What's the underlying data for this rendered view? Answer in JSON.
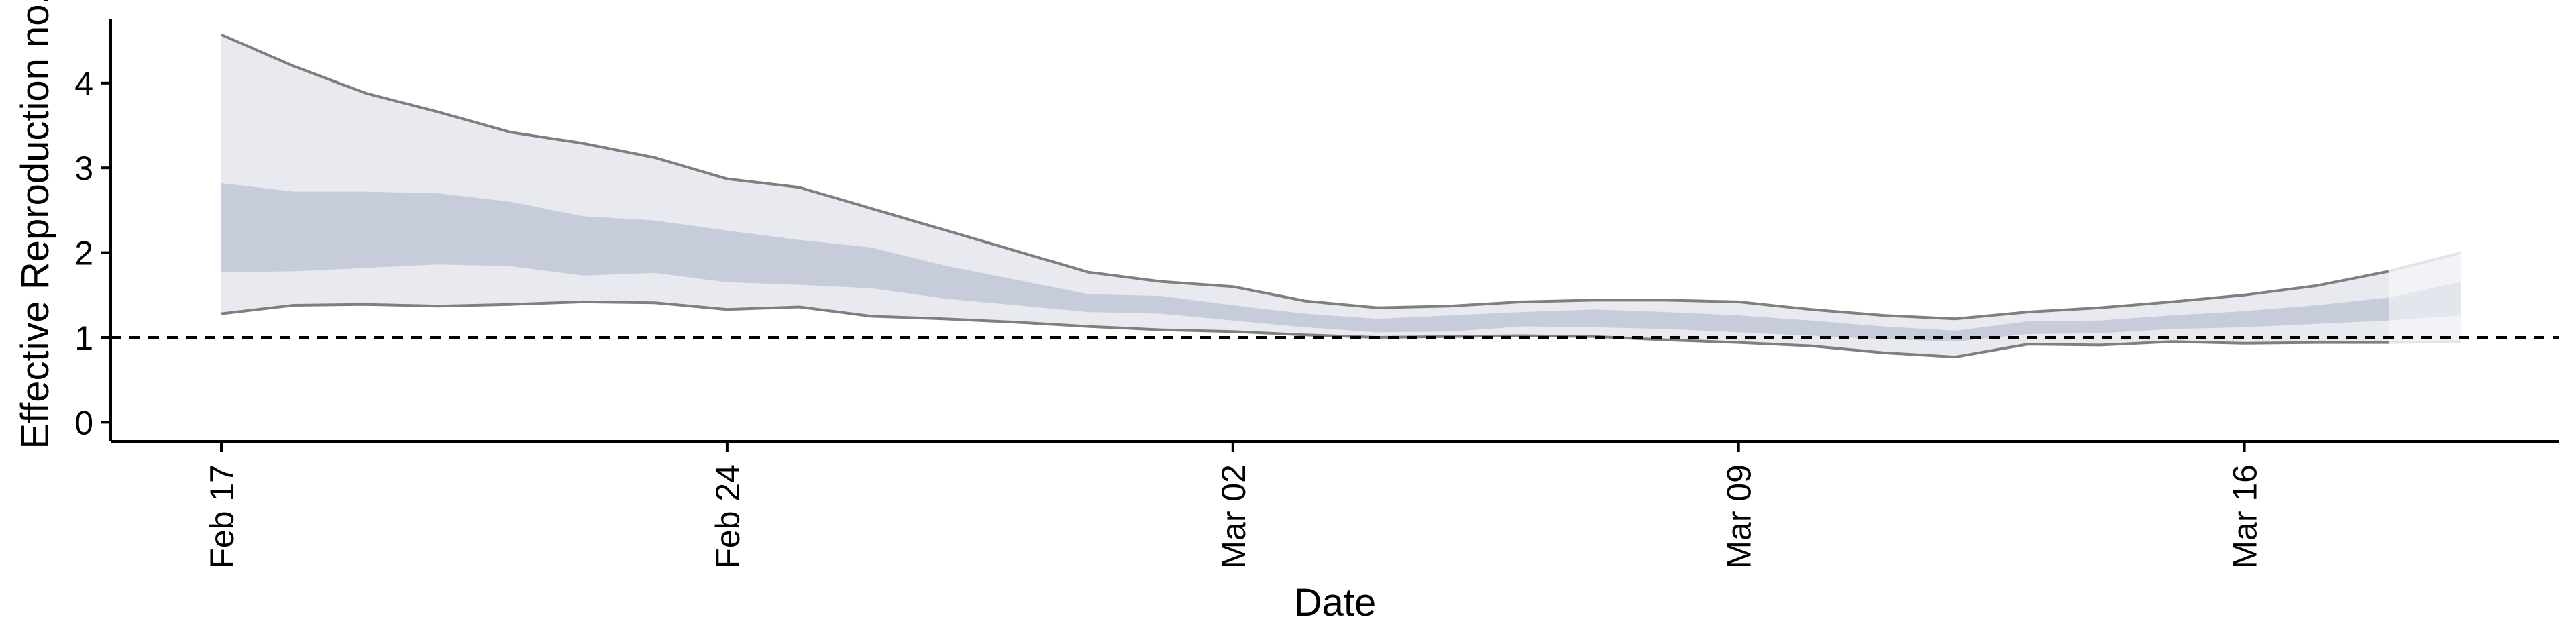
{
  "chart_data": {
    "type": "area",
    "xlabel": "Date",
    "ylabel": "Effective Reproduction no.",
    "x_dates": [
      "02-17",
      "02-18",
      "02-19",
      "02-20",
      "02-21",
      "02-22",
      "02-23",
      "02-24",
      "02-25",
      "02-26",
      "02-27",
      "02-28",
      "02-29",
      "03-01",
      "03-02",
      "03-03",
      "03-04",
      "03-05",
      "03-06",
      "03-07",
      "03-08",
      "03-09",
      "03-10",
      "03-11",
      "03-12",
      "03-13",
      "03-14",
      "03-15",
      "03-16",
      "03-17",
      "03-18",
      "03-19"
    ],
    "x_ticks": [
      {
        "label": "Feb 17",
        "index": 0
      },
      {
        "label": "Feb 24",
        "index": 7
      },
      {
        "label": "Mar 02",
        "index": 14
      },
      {
        "label": "Mar 09",
        "index": 21
      },
      {
        "label": "Mar 16",
        "index": 28
      }
    ],
    "y_ticks": [
      0,
      1,
      2,
      3,
      4
    ],
    "ylim": [
      -0.2,
      4.85
    ],
    "reference_line": {
      "y": 1,
      "style": "dashed"
    },
    "estimate_type_change_index": 30,
    "series": [
      {
        "band": "90% interval",
        "lower": [
          1.28,
          1.38,
          1.39,
          1.37,
          1.39,
          1.42,
          1.41,
          1.33,
          1.36,
          1.25,
          1.22,
          1.18,
          1.13,
          1.09,
          1.07,
          1.03,
          1.0,
          1.01,
          1.02,
          1.01,
          0.97,
          0.94,
          0.9,
          0.82,
          0.77,
          0.92,
          0.91,
          0.95,
          0.93,
          0.94,
          0.94,
          0.95
        ],
        "upper": [
          4.57,
          4.2,
          3.88,
          3.66,
          3.42,
          3.29,
          3.12,
          2.87,
          2.77,
          2.52,
          2.27,
          2.02,
          1.77,
          1.66,
          1.6,
          1.43,
          1.35,
          1.37,
          1.42,
          1.44,
          1.44,
          1.42,
          1.33,
          1.26,
          1.22,
          1.3,
          1.35,
          1.42,
          1.5,
          1.61,
          1.78,
          2.0
        ]
      },
      {
        "band": "50% interval",
        "lower": [
          1.77,
          1.78,
          1.82,
          1.86,
          1.84,
          1.73,
          1.76,
          1.65,
          1.62,
          1.58,
          1.46,
          1.38,
          1.3,
          1.28,
          1.2,
          1.12,
          1.06,
          1.07,
          1.13,
          1.12,
          1.1,
          1.06,
          1.02,
          0.98,
          0.95,
          1.04,
          1.05,
          1.1,
          1.12,
          1.16,
          1.2,
          1.26
        ],
        "upper": [
          2.82,
          2.72,
          2.72,
          2.7,
          2.6,
          2.43,
          2.38,
          2.26,
          2.15,
          2.06,
          1.85,
          1.68,
          1.51,
          1.49,
          1.38,
          1.28,
          1.22,
          1.26,
          1.3,
          1.33,
          1.3,
          1.26,
          1.2,
          1.13,
          1.08,
          1.19,
          1.2,
          1.26,
          1.31,
          1.38,
          1.47,
          1.66
        ]
      }
    ],
    "colors": {
      "band_outer": "#e9eaf0",
      "band_inner": "#c6ccda",
      "band_outer_projected": "#f2f3f6",
      "band_inner_projected": "#e3e6ed",
      "bound_line": "#7f7f7f",
      "axis": "#000000",
      "reference": "#000000"
    }
  }
}
